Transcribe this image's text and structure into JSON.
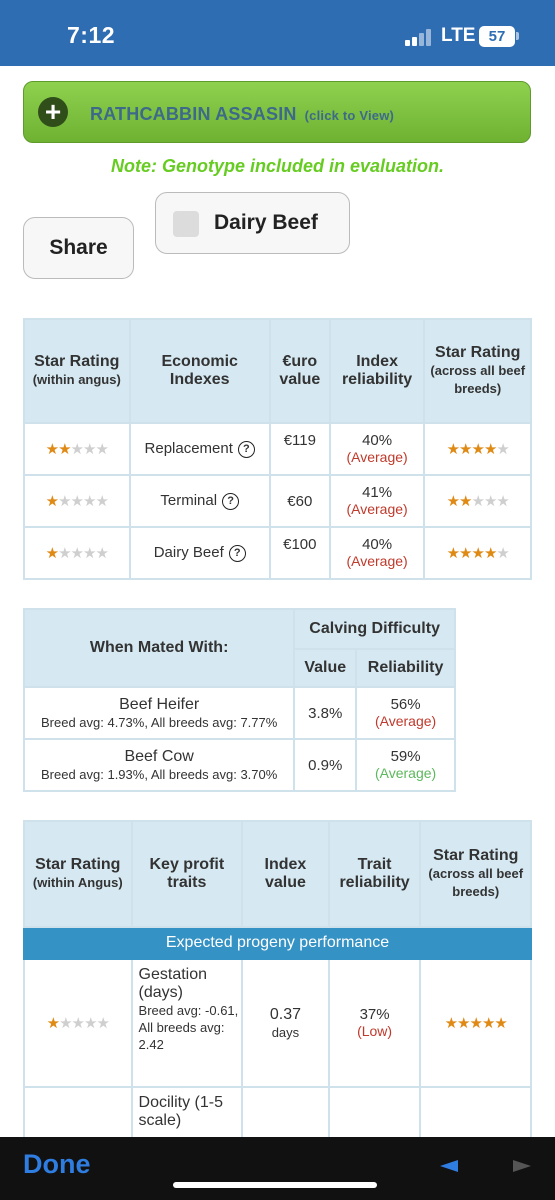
{
  "status_bar": {
    "time": "7:12",
    "network": "LTE",
    "battery": "57"
  },
  "banner": {
    "name": "RATHCABBIN ASSASIN",
    "click_hint": "(click to View)",
    "plus": "+"
  },
  "note": "Note: Genotype included in evaluation.",
  "share_label": "Share",
  "dairy_beef_label": "Dairy Beef",
  "dairy_beef_checked": false,
  "economic": {
    "headers": {
      "star_within_title": "Star Rating",
      "star_within_sub": "(within angus)",
      "indexes": "Economic Indexes",
      "euro": "€uro value",
      "reliability": "Index reliability",
      "star_across_title": "Star Rating",
      "star_across_sub": "(across all beef breeds)"
    },
    "rows": [
      {
        "stars_within": 2,
        "name": "Replacement",
        "value": "€119",
        "reliability": "40%",
        "rel_label": "(Average)",
        "stars_across": 4
      },
      {
        "stars_within": 1,
        "name": "Terminal",
        "value": "€60",
        "reliability": "41%",
        "rel_label": "(Average)",
        "stars_across": 2
      },
      {
        "stars_within": 1,
        "name": "Dairy Beef",
        "value": "€100",
        "reliability": "40%",
        "rel_label": "(Average)",
        "stars_across": 4
      }
    ],
    "help_glyph": "?"
  },
  "calving": {
    "headers": {
      "mated_with": "When Mated With:",
      "calving_difficulty": "Calving Difficulty",
      "value": "Value",
      "reliability": "Reliability"
    },
    "rows": [
      {
        "name": "Beef Heifer",
        "sub": "Breed avg: 4.73%, All breeds avg: 7.77%",
        "value": "3.8%",
        "reliability": "56%",
        "rel_label": "(Average)",
        "rel_color": "red"
      },
      {
        "name": "Beef Cow",
        "sub": "Breed avg: 1.93%, All breeds avg: 3.70%",
        "value": "0.9%",
        "reliability": "59%",
        "rel_label": "(Average)",
        "rel_color": "green"
      }
    ]
  },
  "traits": {
    "headers": {
      "star_within_title": "Star Rating",
      "star_within_sub": "(within Angus)",
      "key_traits": "Key profit traits",
      "index_value": "Index value",
      "trait_reliability": "Trait reliability",
      "star_across_title": "Star Rating",
      "star_across_sub": "(across all beef breeds)"
    },
    "band": "Expected progeny performance",
    "rows": [
      {
        "stars_within": 1,
        "name": "Gestation (days)",
        "sub": "Breed avg: -0.61, All breeds avg: 2.42",
        "value": "0.37",
        "unit": "days",
        "reliability": "37%",
        "rel_label": "(Low)",
        "stars_across": 5
      },
      {
        "name": "Docility (1-5 scale)"
      }
    ]
  },
  "bottom_bar": {
    "done": "Done"
  },
  "colors": {
    "status_blue": "#2f6db3",
    "banner_green": "#7cc242",
    "note_green": "#66cc22",
    "header_blue": "#d6e9f2",
    "band_blue": "#3592c4",
    "star_orange": "#e08a16"
  }
}
